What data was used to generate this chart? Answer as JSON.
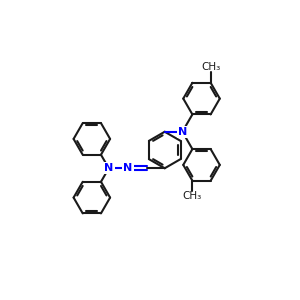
{
  "background_color": "#ffffff",
  "bond_color": "#1a1a1a",
  "n_color": "#0000ff",
  "line_width": 1.5,
  "font_size_atom": 8,
  "font_size_ch3": 7.5,
  "xlim": [
    0,
    10
  ],
  "ylim": [
    0,
    10
  ]
}
